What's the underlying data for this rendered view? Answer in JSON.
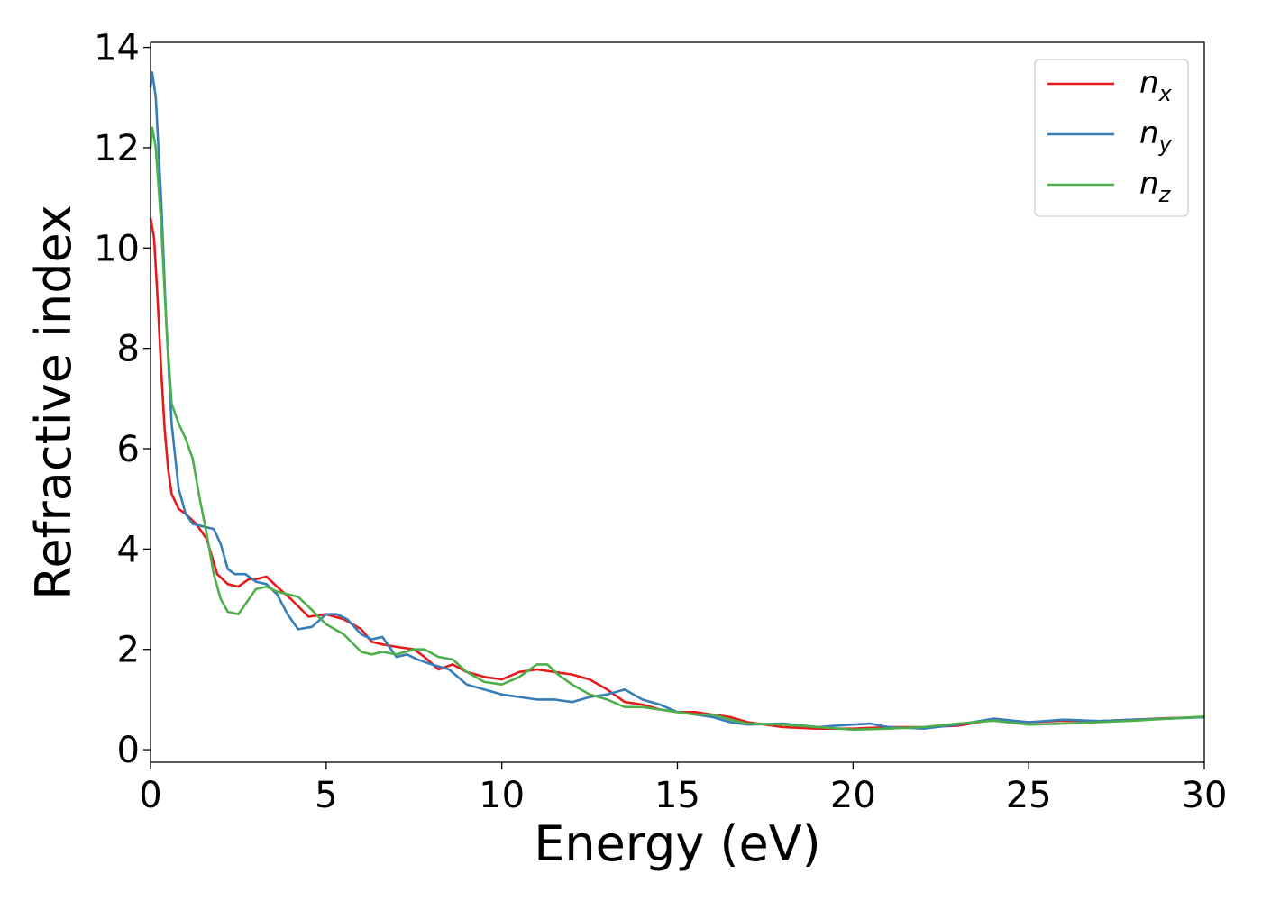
{
  "chart_data": {
    "type": "line",
    "title": "",
    "xlabel": "Energy (eV)",
    "ylabel": "Refractive index",
    "xlim": [
      0,
      30
    ],
    "ylim": [
      -0.25,
      14.1
    ],
    "xticks": [
      0,
      5,
      10,
      15,
      20,
      25,
      30
    ],
    "yticks": [
      0,
      2,
      4,
      6,
      8,
      10,
      12,
      14
    ],
    "xtick_labels": [
      "0",
      "5",
      "10",
      "15",
      "20",
      "25",
      "30"
    ],
    "ytick_labels": [
      "0",
      "2",
      "4",
      "6",
      "8",
      "10",
      "12",
      "14"
    ],
    "grid": false,
    "legend_position": "top-right",
    "series": [
      {
        "name": "n_x",
        "label_base": "n",
        "label_sub": "x",
        "color": "#e41a1c",
        "x": [
          0,
          0.1,
          0.2,
          0.3,
          0.4,
          0.5,
          0.6,
          0.8,
          1.0,
          1.3,
          1.6,
          1.9,
          2.2,
          2.5,
          2.8,
          3.0,
          3.3,
          3.6,
          4.0,
          4.5,
          5.0,
          5.5,
          6.0,
          6.3,
          6.6,
          7.0,
          7.5,
          7.8,
          8.2,
          8.6,
          9.0,
          9.5,
          10.0,
          10.5,
          11.0,
          11.5,
          12.0,
          12.5,
          13.0,
          13.5,
          14.0,
          14.5,
          15.0,
          15.5,
          16.0,
          16.5,
          17.0,
          17.5,
          18.0,
          19.0,
          20.0,
          21.0,
          22.0,
          23.0,
          24.0,
          25.0,
          26.0,
          27.0,
          28.0,
          29.0,
          30.0
        ],
        "y": [
          10.6,
          10.2,
          9.0,
          7.6,
          6.4,
          5.6,
          5.1,
          4.8,
          4.7,
          4.5,
          4.2,
          3.5,
          3.3,
          3.25,
          3.4,
          3.4,
          3.45,
          3.25,
          3.0,
          2.65,
          2.7,
          2.6,
          2.4,
          2.15,
          2.1,
          2.05,
          2.0,
          1.85,
          1.6,
          1.7,
          1.55,
          1.45,
          1.4,
          1.55,
          1.6,
          1.55,
          1.5,
          1.4,
          1.2,
          0.95,
          0.9,
          0.8,
          0.75,
          0.75,
          0.7,
          0.65,
          0.55,
          0.5,
          0.45,
          0.42,
          0.42,
          0.45,
          0.45,
          0.48,
          0.6,
          0.55,
          0.58,
          0.57,
          0.6,
          0.63,
          0.65
        ]
      },
      {
        "name": "n_y",
        "label_base": "n",
        "label_sub": "y",
        "color": "#377eb8",
        "x": [
          0,
          0.05,
          0.15,
          0.3,
          0.45,
          0.6,
          0.8,
          1.0,
          1.2,
          1.5,
          1.8,
          2.0,
          2.2,
          2.4,
          2.7,
          3.0,
          3.3,
          3.6,
          3.9,
          4.2,
          4.6,
          5.0,
          5.3,
          5.6,
          6.0,
          6.3,
          6.6,
          7.0,
          7.3,
          7.6,
          8.0,
          8.5,
          9.0,
          9.5,
          10.0,
          10.5,
          11.0,
          11.5,
          12.0,
          12.5,
          13.0,
          13.5,
          14.0,
          14.5,
          15.0,
          15.5,
          16.0,
          16.5,
          17.0,
          18.0,
          19.0,
          19.5,
          20.0,
          20.5,
          21.0,
          22.0,
          23.0,
          24.0,
          25.0,
          26.0,
          27.0,
          28.0,
          29.0,
          30.0
        ],
        "y": [
          13.2,
          13.5,
          13.0,
          11.0,
          8.5,
          6.5,
          5.2,
          4.7,
          4.5,
          4.45,
          4.4,
          4.1,
          3.6,
          3.5,
          3.5,
          3.35,
          3.3,
          3.1,
          2.7,
          2.4,
          2.45,
          2.7,
          2.7,
          2.6,
          2.3,
          2.2,
          2.25,
          1.85,
          1.9,
          1.8,
          1.7,
          1.6,
          1.3,
          1.2,
          1.1,
          1.05,
          1.0,
          1.0,
          0.95,
          1.05,
          1.1,
          1.2,
          1.0,
          0.9,
          0.75,
          0.7,
          0.65,
          0.55,
          0.5,
          0.52,
          0.45,
          0.48,
          0.5,
          0.52,
          0.45,
          0.42,
          0.5,
          0.62,
          0.55,
          0.6,
          0.57,
          0.6,
          0.62,
          0.65
        ]
      },
      {
        "name": "n_z",
        "label_base": "n",
        "label_sub": "z",
        "color": "#4daf4a",
        "x": [
          0,
          0.05,
          0.15,
          0.3,
          0.45,
          0.6,
          0.8,
          1.0,
          1.2,
          1.4,
          1.6,
          1.8,
          2.0,
          2.2,
          2.5,
          2.8,
          3.0,
          3.3,
          3.6,
          3.9,
          4.2,
          4.5,
          5.0,
          5.5,
          6.0,
          6.3,
          6.6,
          7.0,
          7.5,
          7.8,
          8.2,
          8.6,
          9.0,
          9.5,
          10.0,
          10.5,
          11.0,
          11.3,
          11.6,
          12.0,
          12.5,
          13.0,
          13.5,
          14.0,
          14.5,
          15.0,
          15.5,
          16.0,
          16.5,
          17.0,
          18.0,
          19.0,
          20.0,
          21.0,
          22.0,
          23.0,
          24.0,
          25.0,
          26.0,
          27.0,
          28.0,
          29.0,
          30.0
        ],
        "y": [
          12.0,
          12.4,
          12.0,
          10.5,
          8.5,
          6.9,
          6.5,
          6.2,
          5.8,
          5.0,
          4.3,
          3.5,
          3.0,
          2.75,
          2.7,
          3.0,
          3.2,
          3.25,
          3.15,
          3.1,
          3.05,
          2.85,
          2.5,
          2.3,
          1.95,
          1.9,
          1.95,
          1.9,
          2.0,
          2.0,
          1.85,
          1.8,
          1.55,
          1.35,
          1.3,
          1.45,
          1.7,
          1.7,
          1.5,
          1.3,
          1.1,
          1.0,
          0.85,
          0.85,
          0.8,
          0.75,
          0.7,
          0.7,
          0.6,
          0.52,
          0.5,
          0.45,
          0.4,
          0.42,
          0.45,
          0.52,
          0.58,
          0.5,
          0.52,
          0.55,
          0.58,
          0.62,
          0.66
        ]
      }
    ]
  }
}
